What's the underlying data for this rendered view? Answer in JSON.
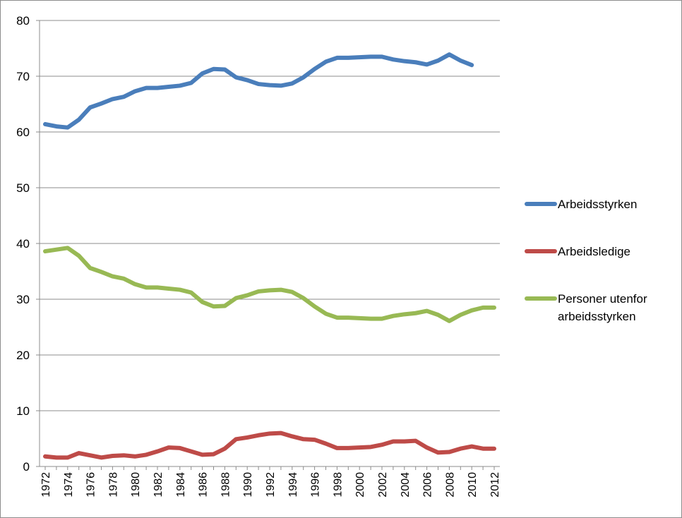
{
  "chart_data": {
    "type": "line",
    "title": "",
    "xlabel": "",
    "ylabel": "",
    "ylim": [
      0,
      80
    ],
    "yticks": [
      "0",
      "10",
      "20",
      "30",
      "40",
      "50",
      "60",
      "70",
      "80"
    ],
    "xticks": [
      "1972",
      "1974",
      "1976",
      "1978",
      "1980",
      "1982",
      "1984",
      "1986",
      "1988",
      "1990",
      "1992",
      "1994",
      "1996",
      "1998",
      "2000",
      "2002",
      "2004",
      "2006",
      "2008",
      "2010",
      "2012"
    ],
    "grid": "horizontal",
    "legend_position": "right",
    "x": [
      1972,
      1973,
      1974,
      1975,
      1976,
      1977,
      1978,
      1979,
      1980,
      1981,
      1982,
      1983,
      1984,
      1985,
      1986,
      1987,
      1988,
      1989,
      1990,
      1991,
      1992,
      1993,
      1994,
      1995,
      1996,
      1997,
      1998,
      1999,
      2000,
      2001,
      2002,
      2003,
      2004,
      2005,
      2006,
      2007,
      2008,
      2009,
      2010,
      2011,
      2012
    ],
    "series": [
      {
        "name": "Arbeidsstyrken",
        "color": "#4a7ebb",
        "values": [
          61.4,
          61.0,
          60.8,
          62.2,
          64.4,
          65.1,
          65.9,
          66.3,
          67.3,
          67.9,
          67.9,
          68.1,
          68.3,
          68.8,
          70.5,
          71.3,
          71.2,
          69.8,
          69.3,
          68.6,
          68.4,
          68.3,
          68.7,
          69.8,
          71.3,
          72.6,
          73.3,
          73.3,
          73.4,
          73.5,
          73.5,
          73.0,
          72.7,
          72.5,
          72.1,
          72.8,
          73.9,
          72.8,
          72.0,
          null,
          null
        ]
      },
      {
        "name": "Arbeidsledige",
        "color": "#be4b48",
        "values": [
          1.8,
          1.6,
          1.6,
          2.4,
          2.0,
          1.6,
          1.9,
          2.0,
          1.8,
          2.1,
          2.7,
          3.4,
          3.3,
          2.7,
          2.1,
          2.2,
          3.2,
          4.9,
          5.2,
          5.6,
          5.9,
          6.0,
          5.4,
          4.9,
          4.8,
          4.1,
          3.3,
          3.3,
          3.4,
          3.5,
          3.9,
          4.5,
          4.5,
          4.6,
          3.4,
          2.5,
          2.6,
          3.2,
          3.6,
          3.2,
          3.2
        ]
      },
      {
        "name": "Personer utenfor arbeidsstyrken",
        "color": "#98b954",
        "values": [
          38.6,
          38.9,
          39.2,
          37.8,
          35.6,
          34.9,
          34.1,
          33.7,
          32.7,
          32.1,
          32.1,
          31.9,
          31.7,
          31.2,
          29.5,
          28.7,
          28.8,
          30.2,
          30.7,
          31.4,
          31.6,
          31.7,
          31.3,
          30.2,
          28.7,
          27.4,
          26.7,
          26.7,
          26.6,
          26.5,
          26.5,
          27.0,
          27.3,
          27.5,
          27.9,
          27.2,
          26.1,
          27.2,
          28.0,
          28.5,
          28.5
        ]
      }
    ],
    "legend": [
      {
        "lines": [
          "Arbeidsstyrken"
        ],
        "color": "#4a7ebb"
      },
      {
        "lines": [
          "Arbeidsledige"
        ],
        "color": "#be4b48"
      },
      {
        "lines": [
          "Personer utenfor",
          "arbeidsstyrken"
        ],
        "color": "#98b954"
      }
    ]
  }
}
